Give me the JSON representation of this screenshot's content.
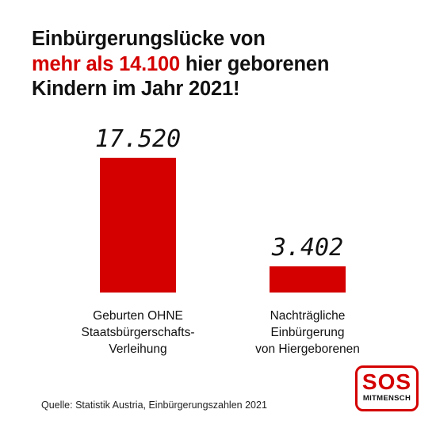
{
  "title": {
    "line1": "Einbürgerungslücke von",
    "highlight": "mehr als 14.100",
    "line2_rest": " hier geborenen",
    "line3": "Kindern im Jahr 2021!"
  },
  "colors": {
    "accent": "#d40000",
    "text": "#111111",
    "background": "#ffffff"
  },
  "chart_data": {
    "type": "bar",
    "title": "",
    "xlabel": "",
    "ylabel": "",
    "categories": [
      [
        "Geburten OHNE",
        "Staatsbürgerschafts-",
        "Verleihung"
      ],
      [
        "Nachträgliche",
        "Einbürgerung",
        "von Hiergeborenen"
      ]
    ],
    "values": [
      17520,
      3402
    ],
    "value_labels": [
      "17.520",
      "3.402"
    ],
    "ylim": [
      0,
      17520
    ],
    "grid": false,
    "legend": false
  },
  "source": "Quelle: Statistik Austria, Einbürgerungszahlen 2021",
  "logo": {
    "main": "SOS",
    "sub": "MITMENSCH"
  }
}
